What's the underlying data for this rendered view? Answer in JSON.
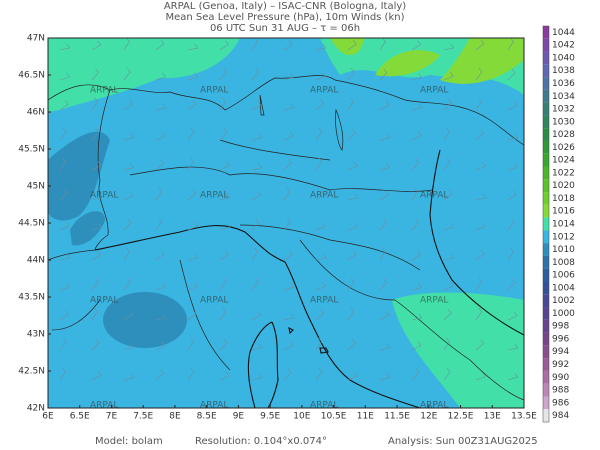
{
  "header": {
    "line1": "ARPAL (Genoa, Italy)  –  ISAC-CNR (Bologna, Italy)",
    "line2": "Mean Sea Level Pressure (hPa), 10m Winds (kn)",
    "line3": "06 UTC Sun 31 AUG  –  τ = 06h"
  },
  "latitude_labels": [
    "47N",
    "46.5N",
    "46N",
    "45.5N",
    "45N",
    "44.5N",
    "44N",
    "43.5N",
    "43N",
    "42.5N",
    "42N"
  ],
  "longitude_labels": [
    "6E",
    "6.5E",
    "7E",
    "7.5E",
    "8E",
    "8.5E",
    "9E",
    "9.5E",
    "10E",
    "10.5E",
    "11E",
    "11.5E",
    "12E",
    "12.5E",
    "13E",
    "13.5E"
  ],
  "watermark": "ARPAL",
  "colorbar": {
    "levels": [
      1044,
      1042,
      1040,
      1038,
      1036,
      1034,
      1032,
      1030,
      1028,
      1026,
      1024,
      1022,
      1020,
      1018,
      1016,
      1014,
      1012,
      1010,
      1008,
      1006,
      1004,
      1002,
      1000,
      998,
      996,
      994,
      992,
      990,
      988,
      986,
      984
    ],
    "colors": [
      "#8b3a9e",
      "#7e4aa8",
      "#6f58b0",
      "#5f68b4",
      "#4d74a6",
      "#3f7a8e",
      "#367f74",
      "#2f855c",
      "#2b8c45",
      "#2f9a36",
      "#3aa82e",
      "#4bb62a",
      "#5cc22b",
      "#6fcf2e",
      "#84da38",
      "#42e0a8",
      "#3ab4e0",
      "#2e8fbc",
      "#2b72aa",
      "#2c5d9e",
      "#35509a",
      "#454896",
      "#564492",
      "#67428e",
      "#78458c",
      "#8a4e8e",
      "#9a5c96",
      "#ab6fa4",
      "#bc87b6",
      "#cfa6cb",
      "#e6e6e6"
    ]
  },
  "footer": {
    "model": "Model: bolam",
    "resolution": "Resolution: 0.104°x0.074°",
    "analysis": "Analysis: Sun 00Z31AUG2025"
  }
}
